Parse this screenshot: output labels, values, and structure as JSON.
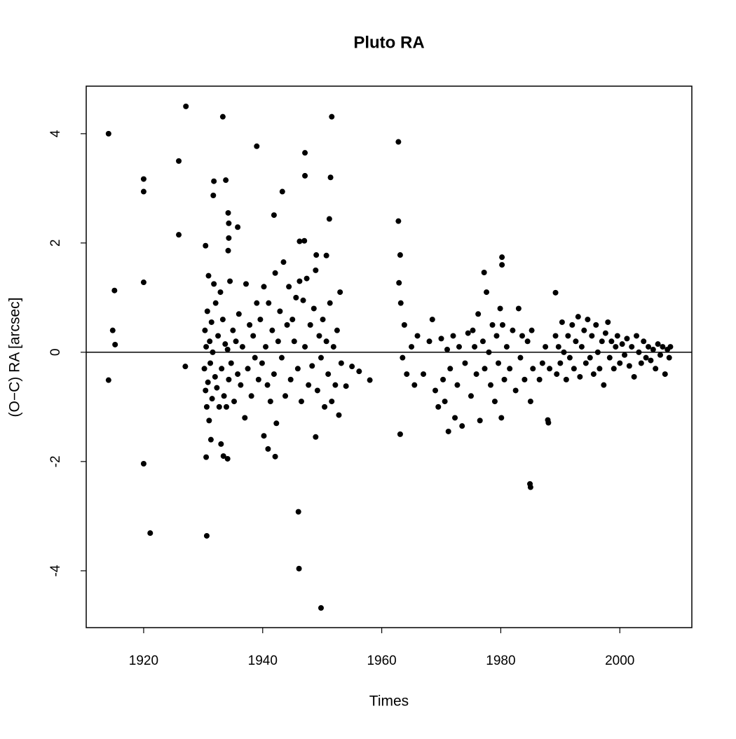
{
  "chart_data": {
    "type": "scatter",
    "title": "Pluto RA",
    "x_label": "Times",
    "y_label": "(O−C) RA [arcsec]",
    "color": "#000000",
    "hline": 0,
    "xlim": [
      1910.35,
      2012.1
    ],
    "ylim": [
      -5.04,
      4.87
    ],
    "xticks": [
      1920,
      1940,
      1960,
      1980,
      2000
    ],
    "yticks": [
      -4,
      -2,
      0,
      2,
      4
    ],
    "x": [
      1914.1,
      1914.1,
      1915.1,
      1914.8,
      1915.2,
      1920.0,
      1920.0,
      1920.0,
      1920.0,
      1921.1,
      1925.9,
      1925.9,
      1927.0,
      1927.1,
      1930.5,
      1930.6,
      1930.4,
      1931.8,
      1931.7,
      1933.3,
      1933.8,
      1934.2,
      1934.3,
      1934.3,
      1934.2,
      1935.8,
      1933.0,
      1933.4,
      1934.1,
      1939.0,
      1941.9,
      1943.3,
      1947.1,
      1947.1,
      1946.0,
      1946.1,
      1949.8,
      1951.6,
      1951.4,
      1951.2,
      1946.2,
      1947.0,
      1949.0,
      1950.7,
      1940.2,
      1940.9,
      1942.1,
      1948.9,
      1962.8,
      1962.8,
      1963.1,
      1963.1,
      1962.9,
      1980.2,
      1980.2,
      1977.2,
      1984.9,
      1985.0,
      1987.9,
      1988.0,
      1989.2,
      1955.0,
      1956.2,
      1958.0,
      1954.0,
      1930.2,
      1930.3,
      1930.4,
      1930.5,
      1930.6,
      1930.7,
      1930.8,
      1930.9,
      1931.0,
      1931.1,
      1931.2,
      1931.3,
      1931.4,
      1931.5,
      1931.6,
      1931.8,
      1932.0,
      1932.1,
      1932.3,
      1932.5,
      1932.7,
      1932.9,
      1933.1,
      1933.3,
      1933.5,
      1933.7,
      1933.9,
      1934.1,
      1934.3,
      1934.5,
      1934.7,
      1935.0,
      1935.2,
      1935.5,
      1935.8,
      1936.0,
      1936.3,
      1936.6,
      1937.0,
      1937.2,
      1937.5,
      1937.8,
      1938.1,
      1938.4,
      1938.7,
      1939.0,
      1939.3,
      1939.6,
      1939.9,
      1940.2,
      1940.5,
      1940.8,
      1941.0,
      1941.3,
      1941.6,
      1941.9,
      1942.1,
      1942.3,
      1942.6,
      1942.9,
      1943.2,
      1943.5,
      1943.8,
      1944.1,
      1944.4,
      1944.7,
      1945.0,
      1945.3,
      1945.6,
      1945.9,
      1946.2,
      1946.5,
      1946.8,
      1947.1,
      1947.4,
      1947.7,
      1948.0,
      1948.3,
      1948.6,
      1948.9,
      1949.2,
      1949.5,
      1949.8,
      1950.1,
      1950.4,
      1950.7,
      1951.0,
      1951.3,
      1951.6,
      1951.9,
      1952.2,
      1952.5,
      1952.8,
      1953.0,
      1953.2,
      1963.2,
      1963.5,
      1963.8,
      1964.2,
      1965.0,
      1965.5,
      1966.0,
      1967.0,
      1968.0,
      1968.5,
      1969.0,
      1969.5,
      1970.0,
      1970.3,
      1970.6,
      1971.0,
      1971.2,
      1971.5,
      1972.0,
      1972.3,
      1972.7,
      1973.0,
      1973.5,
      1974.0,
      1974.5,
      1975.0,
      1975.3,
      1975.6,
      1975.9,
      1976.2,
      1976.5,
      1977.0,
      1977.3,
      1977.6,
      1978.0,
      1978.3,
      1978.6,
      1979.0,
      1979.3,
      1979.6,
      1979.9,
      1980.1,
      1980.3,
      1980.6,
      1981.0,
      1981.5,
      1982.0,
      1982.5,
      1983.0,
      1983.3,
      1983.6,
      1984.0,
      1984.5,
      1985.0,
      1985.2,
      1985.4,
      1986.5,
      1987.0,
      1987.5,
      1988.2,
      1989.2,
      1989.4,
      1989.7,
      1990.0,
      1990.3,
      1990.6,
      1991.0,
      1991.3,
      1991.6,
      1992.0,
      1992.3,
      1992.6,
      1993.0,
      1993.3,
      1993.6,
      1994.0,
      1994.3,
      1994.6,
      1995.0,
      1995.3,
      1995.6,
      1996.0,
      1996.3,
      1996.6,
      1997.0,
      1997.3,
      1997.6,
      1998.0,
      1998.3,
      1998.6,
      1999.0,
      1999.3,
      1999.6,
      2000.0,
      2000.4,
      2000.8,
      2001.2,
      2001.6,
      2002.0,
      2002.4,
      2002.8,
      2003.2,
      2003.6,
      2004.0,
      2004.4,
      2004.8,
      2005.2,
      2005.6,
      2006.0,
      2006.4,
      2006.8,
      2007.2,
      2007.6,
      2008.0,
      2008.3,
      2008.5
    ],
    "values": [
      4.0,
      -0.51,
      1.13,
      0.4,
      0.14,
      3.17,
      2.94,
      1.28,
      -2.04,
      -3.31,
      3.5,
      2.15,
      -0.26,
      4.5,
      -1.92,
      -3.36,
      1.95,
      3.13,
      2.87,
      4.31,
      3.15,
      2.55,
      2.36,
      2.09,
      1.86,
      2.29,
      -1.68,
      -1.9,
      -1.95,
      3.77,
      2.51,
      2.94,
      3.65,
      3.23,
      -2.92,
      -3.96,
      -4.68,
      4.31,
      3.2,
      2.44,
      2.03,
      2.04,
      1.78,
      1.77,
      -1.53,
      -1.77,
      -1.91,
      -1.55,
      3.85,
      2.4,
      1.78,
      -1.5,
      1.27,
      1.74,
      1.6,
      1.46,
      -2.41,
      -2.47,
      -1.24,
      -1.29,
      1.09,
      -0.26,
      -0.35,
      -0.51,
      -0.62,
      -0.3,
      0.4,
      -0.7,
      0.1,
      -1.0,
      0.75,
      -0.55,
      1.4,
      -1.25,
      0.2,
      -0.2,
      -1.6,
      0.55,
      -0.85,
      0.0,
      1.25,
      -0.45,
      0.9,
      -0.65,
      0.3,
      -1.0,
      1.1,
      -0.3,
      0.6,
      -0.8,
      0.15,
      -1.0,
      0.05,
      -0.5,
      1.3,
      -0.2,
      0.4,
      -0.9,
      0.2,
      -0.4,
      0.7,
      -0.6,
      0.1,
      -1.2,
      1.25,
      -0.3,
      0.5,
      -0.8,
      0.3,
      -0.1,
      0.9,
      -0.5,
      0.6,
      -0.2,
      1.2,
      0.1,
      -0.6,
      0.9,
      -0.9,
      0.4,
      -0.4,
      1.45,
      -1.3,
      0.2,
      0.75,
      -0.1,
      1.65,
      -0.8,
      0.5,
      1.2,
      -0.5,
      0.6,
      0.2,
      1.0,
      -0.3,
      1.3,
      -0.9,
      0.95,
      0.1,
      1.35,
      -0.6,
      0.5,
      -0.25,
      0.8,
      1.5,
      -0.7,
      0.3,
      -0.1,
      0.6,
      -1.0,
      0.2,
      -0.4,
      0.9,
      -0.9,
      0.1,
      -0.6,
      0.4,
      -1.15,
      1.1,
      -0.2,
      0.9,
      -0.1,
      0.5,
      -0.4,
      0.1,
      -0.6,
      0.3,
      -0.4,
      0.2,
      0.6,
      -0.7,
      -1.0,
      0.25,
      -0.5,
      -0.9,
      0.05,
      -1.45,
      -0.3,
      0.3,
      -1.2,
      -0.6,
      0.1,
      -1.35,
      -0.2,
      0.35,
      -0.8,
      0.4,
      0.1,
      -0.4,
      0.7,
      -1.25,
      0.2,
      -0.3,
      1.1,
      0.0,
      -0.6,
      0.5,
      -0.9,
      0.3,
      -0.2,
      0.8,
      -1.2,
      0.5,
      -0.5,
      0.1,
      -0.3,
      0.4,
      -0.7,
      0.8,
      -0.1,
      0.3,
      -0.5,
      0.2,
      -0.9,
      0.4,
      -0.3,
      -0.5,
      -0.2,
      0.1,
      -0.3,
      0.3,
      -0.4,
      0.1,
      -0.2,
      0.55,
      0.0,
      -0.5,
      0.3,
      -0.1,
      0.5,
      -0.3,
      0.2,
      0.65,
      -0.45,
      0.1,
      0.4,
      -0.2,
      0.6,
      -0.1,
      0.3,
      -0.4,
      0.5,
      0.0,
      -0.3,
      0.2,
      -0.6,
      0.35,
      0.55,
      -0.1,
      0.2,
      -0.3,
      0.1,
      0.3,
      -0.2,
      0.15,
      -0.05,
      0.25,
      -0.25,
      0.1,
      -0.45,
      0.3,
      0.0,
      -0.2,
      0.2,
      -0.1,
      0.1,
      -0.15,
      0.05,
      -0.3,
      0.15,
      -0.05,
      0.1,
      -0.4,
      0.05,
      -0.1,
      0.1
    ]
  }
}
